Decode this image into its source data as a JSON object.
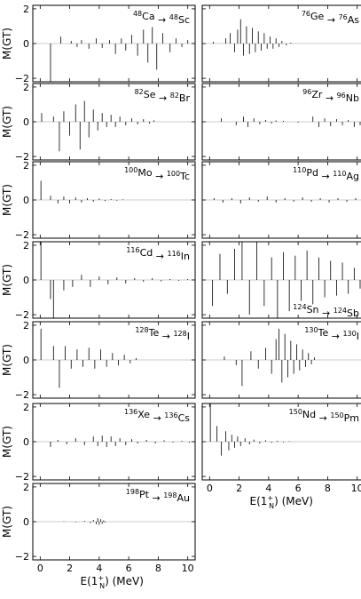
{
  "figure": {
    "ylabel": "M(GT)",
    "xlabel_main": "E(1",
    "xlabel_sup": "+",
    "xlabel_sub": "N",
    "xlabel_tail": ") (MeV)",
    "yticks": [
      -2,
      0,
      2
    ],
    "xticks": [
      0,
      2,
      4,
      6,
      8,
      10
    ],
    "xlim": [
      -0.5,
      10.5
    ],
    "ylim": [
      -2.2,
      2.2
    ]
  },
  "chart_data": [
    {
      "type": "bar",
      "label": {
        "m1": "48",
        "e1": "Ca",
        "m2": "48",
        "e2": "Sc"
      },
      "position": "top-right",
      "x": [
        0.7,
        1.4,
        2.1,
        2.5,
        2.8,
        3.3,
        3.8,
        4.2,
        4.7,
        5.1,
        5.5,
        5.8,
        6.2,
        6.6,
        7.0,
        7.3,
        7.6,
        7.9,
        8.3,
        8.8,
        9.2,
        9.6,
        10.0
      ],
      "y": [
        -2.3,
        0.4,
        0.15,
        -0.2,
        0.2,
        -0.3,
        0.3,
        -0.25,
        0.2,
        -0.6,
        0.3,
        -0.4,
        0.5,
        -0.7,
        0.8,
        -1.1,
        0.95,
        -1.5,
        0.6,
        -0.5,
        0.3,
        -0.2,
        0.2
      ]
    },
    {
      "type": "bar",
      "label": {
        "m1": "76",
        "e1": "Ge",
        "m2": "76",
        "e2": "As"
      },
      "position": "top-right",
      "x": [
        0.25,
        1.1,
        1.4,
        1.7,
        1.9,
        2.1,
        2.3,
        2.5,
        2.7,
        2.9,
        3.1,
        3.3,
        3.5,
        3.7,
        3.9,
        4.1,
        4.3,
        4.5,
        4.7,
        4.9,
        5.2,
        5.5
      ],
      "y": [
        0.1,
        0.3,
        0.6,
        -0.5,
        0.8,
        1.4,
        -0.7,
        1.0,
        -0.6,
        0.9,
        -0.5,
        0.7,
        -0.4,
        0.6,
        -0.3,
        0.4,
        -0.3,
        0.3,
        -0.2,
        0.15,
        -0.1,
        0.05
      ]
    },
    {
      "type": "bar",
      "label": {
        "m1": "82",
        "e1": "Se",
        "m2": "82",
        "e2": "Br"
      },
      "position": "top-right",
      "x": [
        0.1,
        0.9,
        1.3,
        1.6,
        2.0,
        2.4,
        2.7,
        3.0,
        3.3,
        3.6,
        3.9,
        4.2,
        4.5,
        4.8,
        5.1,
        5.4,
        5.8,
        6.2,
        6.6,
        7.0,
        7.4,
        7.7
      ],
      "y": [
        0.5,
        0.3,
        -1.7,
        0.6,
        -0.8,
        1.0,
        -1.6,
        1.2,
        -0.9,
        0.7,
        -0.5,
        0.5,
        -0.3,
        0.4,
        -0.3,
        0.3,
        -0.2,
        0.2,
        -0.15,
        0.15,
        -0.1,
        0.08
      ]
    },
    {
      "type": "bar",
      "label": {
        "m1": "96",
        "e1": "Zr",
        "m2": "96",
        "e2": "Nb"
      },
      "position": "top-right",
      "x": [
        0.8,
        1.8,
        2.3,
        2.6,
        3.0,
        3.4,
        3.8,
        4.2,
        4.5,
        5.0,
        6.0,
        7.0,
        7.4,
        7.8,
        8.2,
        8.6,
        9.0,
        9.4,
        9.8,
        10.2
      ],
      "y": [
        0.2,
        -0.2,
        0.3,
        -0.3,
        0.2,
        -0.15,
        0.1,
        -0.1,
        0.08,
        0.05,
        -0.05,
        0.3,
        -0.3,
        0.2,
        -0.25,
        0.15,
        -0.2,
        0.1,
        -0.3,
        -0.2
      ]
    },
    {
      "type": "bar",
      "label": {
        "m1": "100",
        "e1": "Mo",
        "m2": "100",
        "e2": "Tc"
      },
      "position": "top-right",
      "x": [
        0.05,
        0.7,
        1.2,
        1.6,
        2.0,
        2.4,
        2.8,
        3.2,
        3.6,
        4.0,
        4.4,
        4.8,
        5.2,
        5.6
      ],
      "y": [
        1.1,
        0.25,
        -0.2,
        0.2,
        -0.2,
        0.15,
        -0.15,
        0.1,
        -0.1,
        0.08,
        -0.06,
        0.05,
        -0.04,
        0.03
      ]
    },
    {
      "type": "bar",
      "label": {
        "m1": "110",
        "e1": "Pd",
        "m2": "110",
        "e2": "Ag"
      },
      "position": "top-right",
      "x": [
        0.3,
        0.9,
        1.5,
        2.1,
        2.7,
        3.3,
        3.9,
        4.5,
        5.1,
        5.7,
        6.3,
        6.9,
        7.5,
        8.1,
        8.7,
        9.3,
        9.9,
        10.3
      ],
      "y": [
        0.1,
        -0.15,
        0.1,
        -0.2,
        0.15,
        -0.1,
        0.2,
        -0.15,
        0.1,
        -0.1,
        0.15,
        -0.1,
        0.1,
        -0.15,
        0.1,
        -0.1,
        0.1,
        -0.05
      ]
    },
    {
      "type": "bar",
      "label": {
        "m1": "116",
        "e1": "Cd",
        "m2": "116",
        "e2": "In"
      },
      "position": "top-right",
      "x": [
        0.05,
        0.7,
        0.9,
        1.6,
        2.2,
        2.8,
        3.4,
        4.0,
        4.6,
        5.2,
        5.8,
        6.4,
        7.0,
        7.6,
        8.2,
        8.8,
        9.4,
        10.0
      ],
      "y": [
        2.3,
        -1.1,
        -2.3,
        -0.6,
        -0.4,
        0.3,
        -0.4,
        0.2,
        -0.25,
        0.15,
        -0.2,
        0.1,
        -0.1,
        0.1,
        -0.08,
        0.05,
        -0.05,
        0.05
      ]
    },
    {
      "type": "bar",
      "label": {
        "m1": "124",
        "e1": "Sn",
        "m2": "124",
        "e2": "Sb"
      },
      "position": "bottom-right",
      "x": [
        0.2,
        0.7,
        1.2,
        1.7,
        2.2,
        2.7,
        3.2,
        3.7,
        4.2,
        4.6,
        5.0,
        5.4,
        5.8,
        6.2,
        6.6,
        7.0,
        7.4,
        7.8,
        8.2,
        8.6,
        9.0,
        9.4,
        9.8,
        10.2
      ],
      "y": [
        -1.5,
        1.5,
        -0.8,
        1.8,
        2.3,
        -2.0,
        2.3,
        -1.5,
        1.3,
        -2.2,
        1.6,
        -1.8,
        1.4,
        -1.2,
        1.7,
        -1.4,
        1.3,
        -1.0,
        1.1,
        -0.9,
        1.0,
        -0.8,
        0.7,
        -0.5
      ]
    },
    {
      "type": "bar",
      "label": {
        "m1": "128",
        "e1": "Te",
        "m2": "128",
        "e2": "I"
      },
      "position": "top-right",
      "x": [
        0.05,
        0.9,
        1.3,
        1.7,
        2.1,
        2.5,
        2.9,
        3.3,
        3.7,
        4.1,
        4.5,
        4.9,
        5.3,
        5.7,
        6.1,
        6.5
      ],
      "y": [
        1.8,
        0.8,
        -1.6,
        0.8,
        -0.5,
        0.6,
        -0.4,
        0.7,
        -0.5,
        0.6,
        -0.4,
        0.4,
        -0.3,
        0.3,
        -0.2,
        0.1
      ]
    },
    {
      "type": "bar",
      "label": {
        "m1": "130",
        "e1": "Te",
        "m2": "130",
        "e2": "I"
      },
      "position": "top-right",
      "x": [
        1.0,
        1.8,
        2.2,
        2.8,
        3.3,
        3.8,
        4.2,
        4.5,
        4.7,
        4.9,
        5.1,
        5.3,
        5.5,
        5.7,
        5.9,
        6.1,
        6.3,
        6.5,
        6.7,
        6.9,
        7.1
      ],
      "y": [
        0.2,
        -0.3,
        -1.5,
        0.5,
        -0.5,
        0.7,
        -0.8,
        1.2,
        1.8,
        -1.3,
        1.5,
        -1.0,
        1.1,
        -0.8,
        0.9,
        -0.6,
        0.6,
        -0.4,
        0.4,
        -0.25,
        0.15
      ]
    },
    {
      "type": "bar",
      "label": {
        "m1": "136",
        "e1": "Xe",
        "m2": "136",
        "e2": "Cs"
      },
      "position": "top-right",
      "x": [
        0.7,
        1.2,
        1.8,
        2.4,
        3.0,
        3.6,
        3.9,
        4.2,
        4.5,
        4.8,
        5.1,
        5.4,
        5.8,
        6.2,
        6.6,
        7.2,
        7.8,
        8.4,
        9.0,
        9.6,
        10.1
      ],
      "y": [
        -0.3,
        0.1,
        -0.15,
        0.2,
        -0.2,
        0.3,
        -0.25,
        0.35,
        -0.3,
        0.3,
        -0.25,
        0.2,
        -0.2,
        0.15,
        -0.1,
        0.1,
        -0.1,
        0.08,
        -0.05,
        0.05,
        -0.05
      ]
    },
    {
      "type": "bar",
      "label": {
        "m1": "150",
        "e1": "Nd",
        "m2": "150",
        "e2": "Pm"
      },
      "position": "top-right",
      "x": [
        0.05,
        0.5,
        0.8,
        1.1,
        1.3,
        1.5,
        1.7,
        1.9,
        2.1,
        2.4,
        2.7,
        3.0,
        3.4,
        3.8,
        4.2,
        4.6,
        5.0,
        5.4
      ],
      "y": [
        2.3,
        0.9,
        -0.8,
        0.6,
        -0.5,
        0.4,
        -0.35,
        0.3,
        -0.25,
        0.2,
        -0.15,
        0.12,
        -0.1,
        0.08,
        -0.06,
        0.05,
        -0.04,
        0.03
      ]
    },
    {
      "type": "bar",
      "label": {
        "m1": "198",
        "e1": "Pt",
        "m2": "198",
        "e2": "Au"
      },
      "position": "top-right",
      "x": [
        1.6,
        2.4,
        3.0,
        3.4,
        3.6,
        3.8,
        3.9,
        4.0,
        4.1,
        4.2,
        4.3,
        4.4
      ],
      "y": [
        0.02,
        -0.03,
        0.05,
        -0.08,
        0.1,
        -0.15,
        0.2,
        -0.18,
        0.15,
        -0.12,
        0.08,
        -0.05
      ]
    }
  ]
}
